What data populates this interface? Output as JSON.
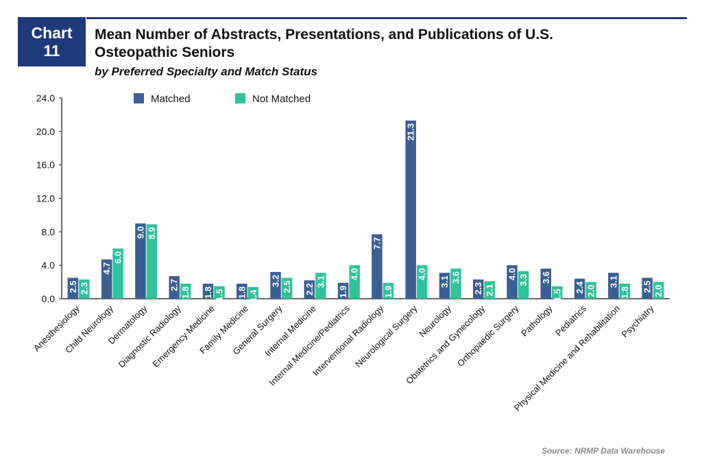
{
  "badge": {
    "line1": "Chart",
    "line2": "11"
  },
  "header": {
    "title_line1": "Mean Number of Abstracts, Presentations, and Publications of U.S.",
    "title_line2": "Osteopathic Seniors",
    "subtitle": "by Preferred Specialty and Match Status"
  },
  "source": "Source: NRMP Data Warehouse",
  "colors": {
    "matched": "#3a5f95",
    "not_matched": "#2fc39a",
    "rule": "#1f3a7a"
  },
  "chart_data": {
    "type": "bar",
    "title": "Mean Number of Abstracts, Presentations, and Publications of U.S. Osteopathic Seniors",
    "subtitle": "by Preferred Specialty and Match Status",
    "xlabel": "",
    "ylabel": "",
    "ylim": [
      0,
      24
    ],
    "yticks": [
      "0.0",
      "4.0",
      "8.0",
      "12.0",
      "16.0",
      "20.0",
      "24.0"
    ],
    "grid": false,
    "legend_position": "top",
    "categories": [
      "Anesthesiology",
      "Child Neurology",
      "Dermatology",
      "Diagnostic Radiology",
      "Emergency Medicine",
      "Family Medicine",
      "General Surgery",
      "Internal Medicine",
      "Internal Medicine/Pediatrics",
      "Interventional Radiology",
      "Neurological Surgery",
      "Neurology",
      "Obstetrics and Gynecology",
      "Orthopaedic Surgery",
      "Pathology",
      "Pediatrics",
      "Physical Medicine and Rehabilitation",
      "Psychiatry"
    ],
    "series": [
      {
        "name": "Matched",
        "values": [
          2.5,
          4.7,
          9.0,
          2.7,
          1.8,
          1.8,
          3.2,
          2.2,
          1.9,
          7.7,
          21.3,
          3.1,
          2.3,
          4.0,
          3.6,
          2.4,
          3.1,
          2.5
        ]
      },
      {
        "name": "Not Matched",
        "values": [
          2.3,
          6.0,
          8.9,
          1.8,
          1.5,
          1.4,
          2.5,
          3.1,
          4.0,
          1.9,
          4.0,
          3.6,
          2.1,
          3.3,
          1.5,
          2.0,
          1.8,
          2.0
        ]
      }
    ]
  }
}
